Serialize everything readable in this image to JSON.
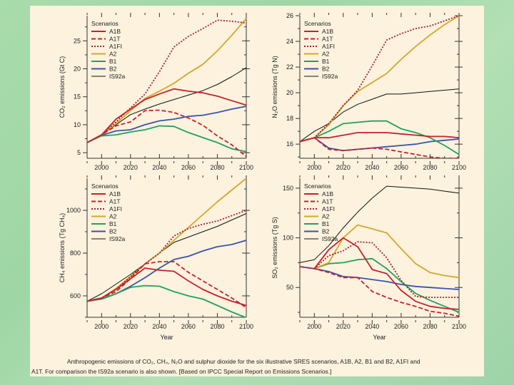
{
  "colors": {
    "A1B": "#c8202e",
    "A1T": "#c8202e",
    "A1FI": "#a8202e",
    "A2": "#d4a82a",
    "B1": "#22a060",
    "B2": "#3a54a8",
    "IS92a": "#111111"
  },
  "caption": {
    "line1": "Anthropogenic emissions of CO₂, CH₄, N₂O and sulphur dioxide for the six illustrative SRES scenarios, A1B, A2, B1 and B2, A1FI and",
    "line2": "A1T. For comparison the IS92a scenario is also shown. [Based on IPCC Special Report on Emissions Scenarios.]"
  },
  "chart_data": [
    {
      "type": "line",
      "id": "co2",
      "title": "",
      "xlabel": "",
      "ylabel": "CO₂ emissions (Gt C)",
      "xlim": [
        1990,
        2100
      ],
      "ylim": [
        4,
        29.5
      ],
      "xticks": [
        2000,
        2020,
        2040,
        2060,
        2080,
        2100
      ],
      "yticks": [
        5,
        10,
        15,
        20,
        25
      ],
      "legend_title": "Scenarios",
      "legend_position": "top-left",
      "series": [
        {
          "name": "A1B",
          "style": "solid",
          "x": [
            1990,
            2000,
            2010,
            2020,
            2030,
            2040,
            2050,
            2060,
            2070,
            2080,
            2090,
            2100
          ],
          "y": [
            6.8,
            8.2,
            11.0,
            12.8,
            14.5,
            15.5,
            16.4,
            16.0,
            15.7,
            15.1,
            14.3,
            13.5
          ]
        },
        {
          "name": "A1T",
          "style": "dashed",
          "x": [
            1990,
            2000,
            2010,
            2020,
            2030,
            2040,
            2050,
            2060,
            2070,
            2080,
            2090,
            2100
          ],
          "y": [
            6.8,
            8.2,
            9.8,
            10.5,
            12.5,
            12.6,
            12.2,
            11.2,
            9.9,
            8.0,
            6.4,
            4.3
          ]
        },
        {
          "name": "A1FI",
          "style": "dotted",
          "x": [
            1990,
            2000,
            2010,
            2020,
            2030,
            2040,
            2050,
            2060,
            2070,
            2080,
            2090,
            2100
          ],
          "y": [
            6.8,
            8.2,
            10.5,
            13.0,
            15.5,
            19.5,
            23.9,
            25.8,
            27.2,
            28.7,
            28.5,
            28.2
          ]
        },
        {
          "name": "A2",
          "style": "solid",
          "x": [
            1990,
            2000,
            2010,
            2020,
            2030,
            2040,
            2050,
            2060,
            2070,
            2080,
            2090,
            2100
          ],
          "y": [
            6.8,
            8.2,
            10.2,
            12.5,
            14.7,
            16.0,
            17.4,
            19.2,
            20.8,
            23.2,
            26.0,
            29.0
          ]
        },
        {
          "name": "B1",
          "style": "solid",
          "x": [
            1990,
            2000,
            2010,
            2020,
            2030,
            2040,
            2050,
            2060,
            2070,
            2080,
            2090,
            2100
          ],
          "y": [
            6.8,
            8.0,
            8.2,
            8.7,
            9.1,
            9.8,
            9.7,
            8.6,
            7.7,
            6.8,
            5.7,
            5.2
          ]
        },
        {
          "name": "B2",
          "style": "solid",
          "x": [
            1990,
            2000,
            2010,
            2020,
            2030,
            2040,
            2050,
            2060,
            2070,
            2080,
            2090,
            2100
          ],
          "y": [
            6.8,
            8.1,
            8.9,
            9.1,
            10.0,
            10.7,
            11.0,
            11.5,
            11.7,
            12.2,
            12.8,
            13.3
          ]
        },
        {
          "name": "IS92a",
          "style": "thin",
          "x": [
            1990,
            2000,
            2010,
            2020,
            2030,
            2040,
            2050,
            2060,
            2070,
            2080,
            2090,
            2100
          ],
          "y": [
            6.8,
            8.2,
            10.0,
            11.8,
            12.8,
            13.7,
            14.5,
            15.3,
            16.1,
            17.2,
            18.6,
            20.2
          ]
        }
      ]
    },
    {
      "type": "line",
      "id": "n2o",
      "title": "",
      "xlabel": "",
      "ylabel": "N₂O emissions (Tg N)",
      "xlim": [
        1990,
        2100
      ],
      "ylim": [
        14.9,
        26
      ],
      "xticks": [
        2000,
        2020,
        2040,
        2060,
        2080,
        2100
      ],
      "yticks": [
        16,
        18,
        20,
        22,
        24,
        26
      ],
      "legend_title": "Scenarios",
      "legend_position": "top-left",
      "series": [
        {
          "name": "A1B",
          "style": "solid",
          "x": [
            1990,
            2000,
            2010,
            2020,
            2030,
            2040,
            2050,
            2060,
            2070,
            2080,
            2090,
            2100
          ],
          "y": [
            16.2,
            16.5,
            16.5,
            16.7,
            16.9,
            16.9,
            16.9,
            16.8,
            16.7,
            16.6,
            16.6,
            16.5
          ]
        },
        {
          "name": "A1T",
          "style": "dashed",
          "x": [
            1990,
            2000,
            2010,
            2020,
            2030,
            2040,
            2050,
            2060,
            2070,
            2080,
            2090,
            2100
          ],
          "y": [
            16.2,
            16.5,
            15.6,
            15.5,
            15.6,
            15.7,
            15.6,
            15.4,
            15.2,
            15.0,
            14.9,
            14.9
          ]
        },
        {
          "name": "A1FI",
          "style": "dotted",
          "x": [
            1990,
            2000,
            2010,
            2020,
            2030,
            2040,
            2050,
            2060,
            2070,
            2080,
            2090,
            2100
          ],
          "y": [
            16.2,
            16.5,
            17.6,
            19.0,
            20.2,
            22.1,
            24.1,
            24.6,
            25.0,
            25.2,
            25.6,
            26.0
          ]
        },
        {
          "name": "A2",
          "style": "solid",
          "x": [
            1990,
            2000,
            2010,
            2020,
            2030,
            2040,
            2050,
            2060,
            2070,
            2080,
            2090,
            2100
          ],
          "y": [
            16.2,
            16.5,
            17.5,
            19.0,
            20.1,
            20.8,
            21.5,
            22.6,
            23.6,
            24.5,
            25.3,
            26.0
          ]
        },
        {
          "name": "B1",
          "style": "solid",
          "x": [
            1990,
            2000,
            2010,
            2020,
            2030,
            2040,
            2050,
            2060,
            2070,
            2080,
            2090,
            2100
          ],
          "y": [
            16.2,
            16.5,
            17.0,
            17.6,
            17.7,
            17.8,
            17.8,
            17.2,
            16.9,
            16.5,
            15.9,
            15.2
          ]
        },
        {
          "name": "B2",
          "style": "solid",
          "x": [
            1990,
            2000,
            2010,
            2020,
            2030,
            2040,
            2050,
            2060,
            2070,
            2080,
            2090,
            2100
          ],
          "y": [
            16.2,
            16.5,
            15.7,
            15.5,
            15.6,
            15.7,
            15.8,
            15.9,
            16.0,
            16.2,
            16.3,
            16.4
          ]
        },
        {
          "name": "IS92a",
          "style": "thin",
          "x": [
            1990,
            2000,
            2010,
            2020,
            2030,
            2040,
            2050,
            2060,
            2070,
            2080,
            2090,
            2100
          ],
          "y": [
            16.2,
            17.0,
            17.6,
            18.5,
            19.1,
            19.5,
            19.9,
            19.9,
            20.0,
            20.1,
            20.2,
            20.3
          ]
        }
      ]
    },
    {
      "type": "line",
      "id": "ch4",
      "title": "",
      "xlabel": "Year",
      "ylabel": "CH₄ emissions (Tg CH₄)",
      "xlim": [
        1990,
        2100
      ],
      "ylim": [
        500,
        1150
      ],
      "xticks": [
        2000,
        2020,
        2040,
        2060,
        2080,
        2100
      ],
      "yticks": [
        600,
        800,
        1000
      ],
      "legend_title": "Scenarios",
      "legend_position": "top-left",
      "series": [
        {
          "name": "A1B",
          "style": "solid",
          "x": [
            1990,
            2000,
            2010,
            2020,
            2030,
            2040,
            2050,
            2060,
            2070,
            2080,
            2090,
            2100
          ],
          "y": [
            575,
            590,
            630,
            680,
            730,
            720,
            715,
            670,
            630,
            600,
            575,
            555
          ]
        },
        {
          "name": "A1T",
          "style": "dashed",
          "x": [
            1990,
            2000,
            2010,
            2020,
            2030,
            2040,
            2050,
            2060,
            2070,
            2080,
            2090,
            2100
          ],
          "y": [
            575,
            590,
            620,
            680,
            750,
            760,
            760,
            710,
            670,
            630,
            590,
            545
          ]
        },
        {
          "name": "A1FI",
          "style": "dotted",
          "x": [
            1990,
            2000,
            2010,
            2020,
            2030,
            2040,
            2050,
            2060,
            2070,
            2080,
            2090,
            2100
          ],
          "y": [
            575,
            590,
            630,
            690,
            750,
            800,
            880,
            915,
            935,
            950,
            975,
            1000
          ]
        },
        {
          "name": "A2",
          "style": "solid",
          "x": [
            1990,
            2000,
            2010,
            2020,
            2030,
            2040,
            2050,
            2060,
            2070,
            2080,
            2090,
            2100
          ],
          "y": [
            575,
            590,
            635,
            690,
            750,
            800,
            860,
            920,
            980,
            1040,
            1095,
            1150
          ]
        },
        {
          "name": "B1",
          "style": "solid",
          "x": [
            1990,
            2000,
            2010,
            2020,
            2030,
            2040,
            2050,
            2060,
            2070,
            2080,
            2090,
            2100
          ],
          "y": [
            575,
            585,
            610,
            640,
            648,
            645,
            620,
            600,
            585,
            555,
            525,
            498
          ]
        },
        {
          "name": "B2",
          "style": "solid",
          "x": [
            1990,
            2000,
            2010,
            2020,
            2030,
            2040,
            2050,
            2060,
            2070,
            2080,
            2090,
            2100
          ],
          "y": [
            575,
            585,
            610,
            645,
            685,
            730,
            770,
            785,
            810,
            830,
            840,
            860
          ]
        },
        {
          "name": "IS92a",
          "style": "thin",
          "x": [
            1990,
            2000,
            2010,
            2020,
            2030,
            2040,
            2050,
            2060,
            2070,
            2080,
            2090,
            2100
          ],
          "y": [
            575,
            610,
            655,
            700,
            750,
            800,
            850,
            875,
            900,
            925,
            955,
            985
          ]
        }
      ]
    },
    {
      "type": "line",
      "id": "so2",
      "title": "",
      "xlabel": "Year",
      "ylabel": "SO₂ emissions (Tg S)",
      "xlim": [
        1990,
        2100
      ],
      "ylim": [
        20,
        160
      ],
      "xticks": [
        2000,
        2020,
        2040,
        2060,
        2080,
        2100
      ],
      "yticks": [
        50,
        100,
        150
      ],
      "legend_title": "Scenarios",
      "legend_position": "top-left",
      "series": [
        {
          "name": "A1B",
          "style": "solid",
          "x": [
            2000,
            2010,
            2020,
            2030,
            2040,
            2050,
            2060,
            2070,
            2080,
            2090,
            2100
          ],
          "y": [
            69,
            88,
            100,
            91,
            68,
            64,
            47,
            36,
            31,
            29,
            28
          ]
        },
        {
          "name": "A1T",
          "style": "dashed",
          "x": [
            1990,
            2000,
            2010,
            2020,
            2030,
            2040,
            2050,
            2060,
            2070,
            2080,
            2090,
            2100
          ],
          "y": [
            71,
            69,
            65,
            60,
            60,
            46,
            40,
            35,
            31,
            26,
            24,
            21
          ]
        },
        {
          "name": "A1FI",
          "style": "dotted",
          "x": [
            2000,
            2010,
            2020,
            2030,
            2040,
            2050,
            2060,
            2070,
            2080,
            2090,
            2100
          ],
          "y": [
            69,
            82,
            87,
            96,
            95,
            80,
            57,
            41,
            40,
            40,
            40
          ]
        },
        {
          "name": "A2",
          "style": "solid",
          "x": [
            2000,
            2010,
            2020,
            2030,
            2040,
            2050,
            2060,
            2070,
            2080,
            2090,
            2100
          ],
          "y": [
            69,
            75,
            100,
            113,
            109,
            105,
            89,
            74,
            65,
            62,
            60
          ]
        },
        {
          "name": "B1",
          "style": "solid",
          "x": [
            2000,
            2010,
            2020,
            2030,
            2040,
            2050,
            2060,
            2070,
            2080,
            2090,
            2100
          ],
          "y": [
            69,
            74,
            75,
            78,
            79,
            69,
            56,
            44,
            37,
            31,
            25
          ]
        },
        {
          "name": "B2",
          "style": "solid",
          "x": [
            1990,
            2000,
            2010,
            2020,
            2030,
            2040,
            2050,
            2060,
            2070,
            2080,
            2090,
            2100
          ],
          "y": [
            71,
            69,
            66,
            61,
            60,
            58,
            56,
            53,
            51,
            50,
            49,
            48
          ]
        },
        {
          "name": "IS92a",
          "style": "thin",
          "x": [
            1990,
            2000,
            2010,
            2020,
            2025,
            2030,
            2040,
            2050,
            2060,
            2070,
            2080,
            2090,
            2100
          ],
          "y": [
            75,
            78,
            92,
            110,
            118,
            126,
            140,
            152,
            151,
            150,
            149,
            147,
            145
          ]
        }
      ]
    }
  ]
}
